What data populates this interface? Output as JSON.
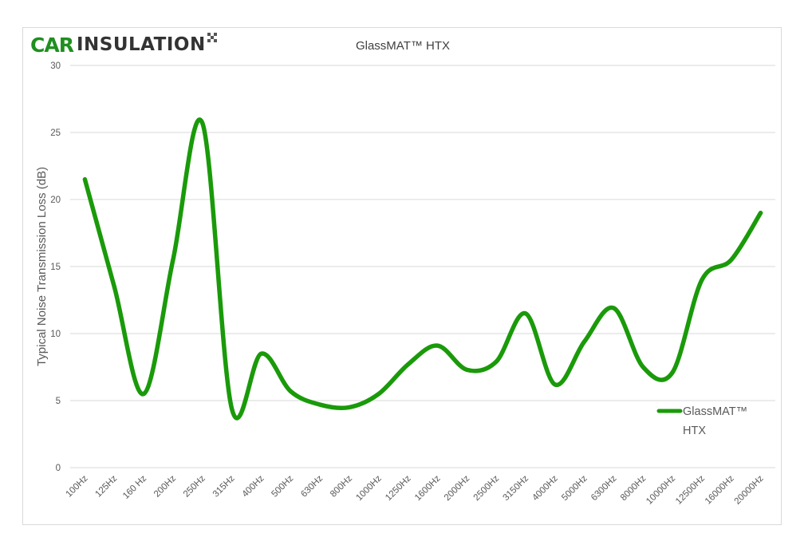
{
  "logo": {
    "brand_part1": "CAR",
    "brand_part2": "INSULATION"
  },
  "colors": {
    "line": "#1a9a0a",
    "grid": "#d9d9d9",
    "axis_text": "#595959",
    "logo_green": "#1f8f1f"
  },
  "chart_data": {
    "type": "line",
    "title": "GlassMAT™ HTX",
    "xlabel": "",
    "ylabel": "Typical Noise Transmission Loss (dB)",
    "ylim": [
      0,
      30
    ],
    "yticks": [
      0,
      5,
      10,
      15,
      20,
      25,
      30
    ],
    "grid": true,
    "legend": "right",
    "smooth": true,
    "categories": [
      "100Hz",
      "125Hz",
      "160 Hz",
      "200Hz",
      "250Hz",
      "315Hz",
      "400Hz",
      "500Hz",
      "630Hz",
      "800Hz",
      "1000Hz",
      "1250Hz",
      "1600Hz",
      "2000Hz",
      "2500Hz",
      "3150Hz",
      "4000Hz",
      "5000Hz",
      "6300Hz",
      "8000Hz",
      "10000Hz",
      "12500Hz",
      "16000Hz",
      "20000Hz"
    ],
    "series": [
      {
        "name": "GlassMAT™ HTX",
        "legend_lines": [
          "GlassMAT™",
          "HTX"
        ],
        "values": [
          21.5,
          13.5,
          5.5,
          15.5,
          25.7,
          4.4,
          8.5,
          5.7,
          4.7,
          4.5,
          5.5,
          7.7,
          9.1,
          7.3,
          7.9,
          11.5,
          6.2,
          9.4,
          11.9,
          7.5,
          7.1,
          14.0,
          15.5,
          19.0
        ]
      }
    ]
  }
}
